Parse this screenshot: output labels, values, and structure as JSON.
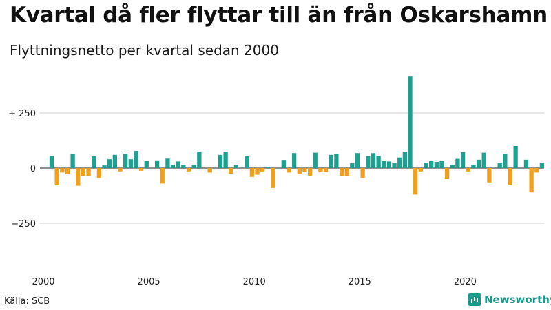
{
  "header": {
    "title": "Kvartal då fler flyttar till än från Oskarshamn",
    "subtitle": "Flyttningsnetto per kvartal sedan 2000"
  },
  "footer": {
    "source": "Källa: SCB",
    "brand": "Newsworthy"
  },
  "colors": {
    "positive": "#20a090",
    "negative": "#f0a020",
    "grid": "#cccccc",
    "brand": "#1a9a8a"
  },
  "chart_data": {
    "type": "bar",
    "title": "Kvartal då fler flyttar till än från Oskarshamn",
    "subtitle": "Flyttningsnetto per kvartal sedan 2000",
    "xlabel": "",
    "ylabel": "",
    "ylim": [
      -470,
      470
    ],
    "y_ticks": [
      {
        "value": 250,
        "label": "+ 250"
      },
      {
        "value": 0,
        "label": "0"
      },
      {
        "value": -250,
        "label": "−250"
      }
    ],
    "x_ticks": [
      "2000",
      "2005",
      "2010",
      "2015",
      "2020"
    ],
    "x_start_year": 2000,
    "period": "quarter",
    "grid": true,
    "values": [
      55,
      -75,
      -20,
      -28,
      63,
      -80,
      -35,
      -35,
      53,
      -45,
      12,
      40,
      60,
      -15,
      65,
      40,
      78,
      -12,
      32,
      0,
      35,
      -70,
      43,
      15,
      30,
      15,
      -15,
      15,
      75,
      0,
      -20,
      0,
      60,
      75,
      -25,
      15,
      0,
      53,
      -40,
      -30,
      -15,
      5,
      -90,
      0,
      37,
      -20,
      68,
      -25,
      -18,
      -35,
      70,
      -18,
      -18,
      60,
      63,
      -35,
      -35,
      22,
      68,
      -45,
      55,
      68,
      55,
      32,
      30,
      25,
      48,
      75,
      415,
      -120,
      -15,
      25,
      33,
      28,
      32,
      -50,
      15,
      42,
      72,
      -15,
      15,
      38,
      70,
      -65,
      0,
      25,
      65,
      -75,
      100,
      0,
      38,
      -110,
      -20,
      25
    ]
  }
}
